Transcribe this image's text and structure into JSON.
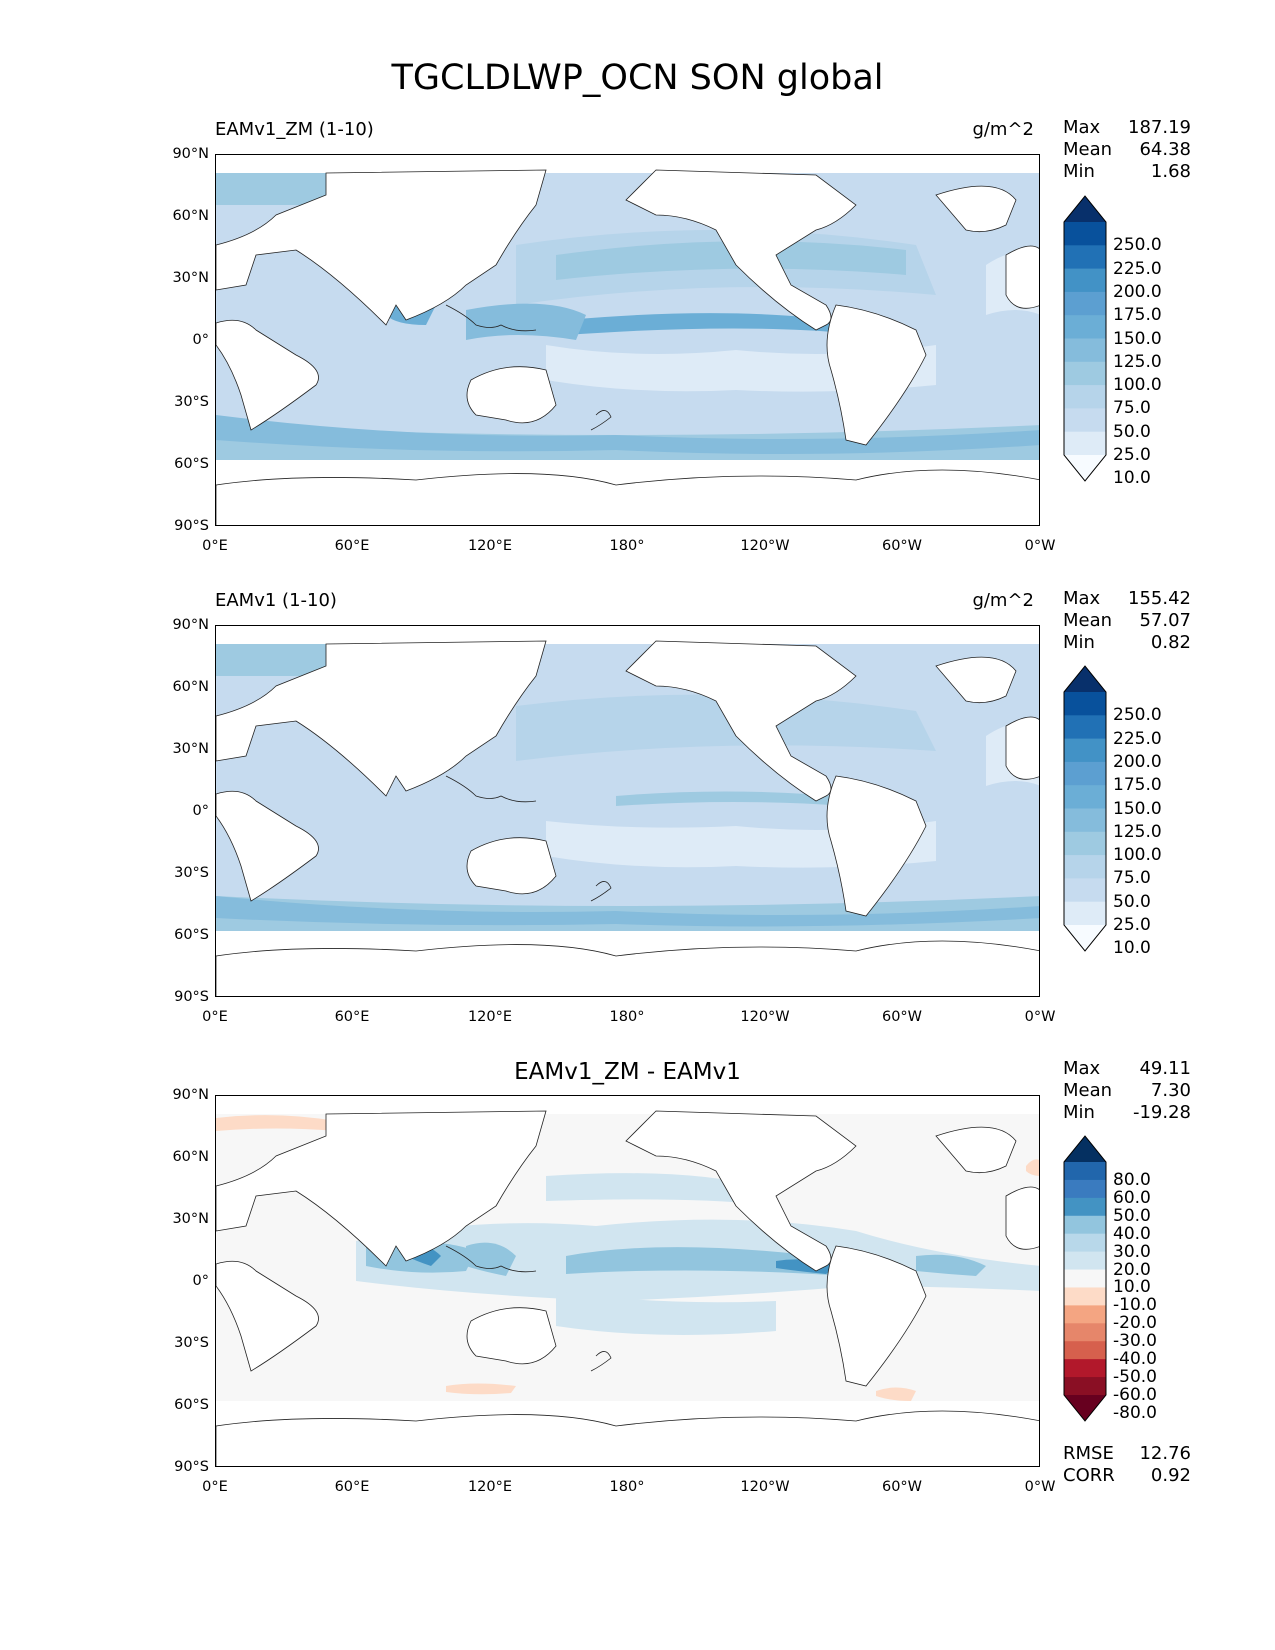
{
  "figure": {
    "title": "TGCLDLWP_OCN SON global"
  },
  "axes": {
    "y_ticks": [
      "90°N",
      "60°N",
      "30°N",
      "0°",
      "30°S",
      "60°S",
      "90°S"
    ],
    "x_ticks": [
      "0°E",
      "60°E",
      "120°E",
      "180°",
      "120°W",
      "60°W",
      "0°W"
    ]
  },
  "panels": [
    {
      "id": "test",
      "title_left": "EAMv1_ZM (1-10)",
      "title_right": "g/m^2",
      "stats": [
        {
          "label": "Max",
          "value": "187.19"
        },
        {
          "label": "Mean",
          "value": "64.38"
        },
        {
          "label": "Min",
          "value": "1.68"
        }
      ],
      "colorbar": {
        "labels": [
          "250.0",
          "225.0",
          "200.0",
          "175.0",
          "150.0",
          "125.0",
          "100.0",
          "75.0",
          "50.0",
          "25.0",
          "10.0"
        ],
        "colors": [
          "#08306b",
          "#08519c",
          "#2171b5",
          "#4292c6",
          "#5c9fd1",
          "#6baed6",
          "#85bcdc",
          "#9ecae1",
          "#b6d4ea",
          "#c6dbef",
          "#deebf7",
          "#f7fbff"
        ]
      }
    },
    {
      "id": "ref",
      "title_left": "EAMv1 (1-10)",
      "title_right": "g/m^2",
      "stats": [
        {
          "label": "Max",
          "value": "155.42"
        },
        {
          "label": "Mean",
          "value": "57.07"
        },
        {
          "label": "Min",
          "value": "0.82"
        }
      ],
      "colorbar": {
        "labels": [
          "250.0",
          "225.0",
          "200.0",
          "175.0",
          "150.0",
          "125.0",
          "100.0",
          "75.0",
          "50.0",
          "25.0",
          "10.0"
        ],
        "colors": [
          "#08306b",
          "#08519c",
          "#2171b5",
          "#4292c6",
          "#5c9fd1",
          "#6baed6",
          "#85bcdc",
          "#9ecae1",
          "#b6d4ea",
          "#c6dbef",
          "#deebf7",
          "#f7fbff"
        ]
      }
    },
    {
      "id": "diff",
      "title_center": "EAMv1_ZM - EAMv1",
      "stats": [
        {
          "label": "Max",
          "value": "49.11"
        },
        {
          "label": "Mean",
          "value": "7.30"
        },
        {
          "label": "Min",
          "value": "-19.28"
        }
      ],
      "colorbar": {
        "labels": [
          "80.0",
          "60.0",
          "50.0",
          "40.0",
          "30.0",
          "20.0",
          "10.0",
          "-10.0",
          "-20.0",
          "-30.0",
          "-40.0",
          "-50.0",
          "-60.0",
          "-80.0"
        ],
        "colors": [
          "#053061",
          "#2166ac",
          "#3a7bbf",
          "#4393c3",
          "#92c5de",
          "#b8d8ea",
          "#d1e5f0",
          "#f7f7f7",
          "#fddbc7",
          "#f4a582",
          "#e6866a",
          "#d6604d",
          "#b2182b",
          "#8a0f24",
          "#67001f"
        ]
      },
      "metrics": [
        {
          "label": "RMSE",
          "value": "12.76"
        },
        {
          "label": "CORR",
          "value": "0.92"
        }
      ]
    }
  ],
  "chart_data": [
    {
      "type": "heatmap",
      "title": "EAMv1_ZM (1-10)",
      "units": "g/m^2",
      "variable": "TGCLDLWP_OCN",
      "season": "SON",
      "xlim": [
        0,
        360
      ],
      "ylim": [
        -90,
        90
      ],
      "max": 187.19,
      "mean": 64.38,
      "min": 1.68,
      "levels": [
        10,
        25,
        50,
        75,
        100,
        125,
        150,
        175,
        200,
        225,
        250
      ]
    },
    {
      "type": "heatmap",
      "title": "EAMv1 (1-10)",
      "units": "g/m^2",
      "variable": "TGCLDLWP_OCN",
      "season": "SON",
      "xlim": [
        0,
        360
      ],
      "ylim": [
        -90,
        90
      ],
      "max": 155.42,
      "mean": 57.07,
      "min": 0.82,
      "levels": [
        10,
        25,
        50,
        75,
        100,
        125,
        150,
        175,
        200,
        225,
        250
      ]
    },
    {
      "type": "heatmap",
      "title": "EAMv1_ZM - EAMv1",
      "units": "g/m^2",
      "xlim": [
        0,
        360
      ],
      "ylim": [
        -90,
        90
      ],
      "max": 49.11,
      "mean": 7.3,
      "min": -19.28,
      "rmse": 12.76,
      "corr": 0.92,
      "levels": [
        -80,
        -60,
        -50,
        -40,
        -30,
        -20,
        -10,
        10,
        20,
        30,
        40,
        50,
        60,
        80
      ]
    }
  ]
}
